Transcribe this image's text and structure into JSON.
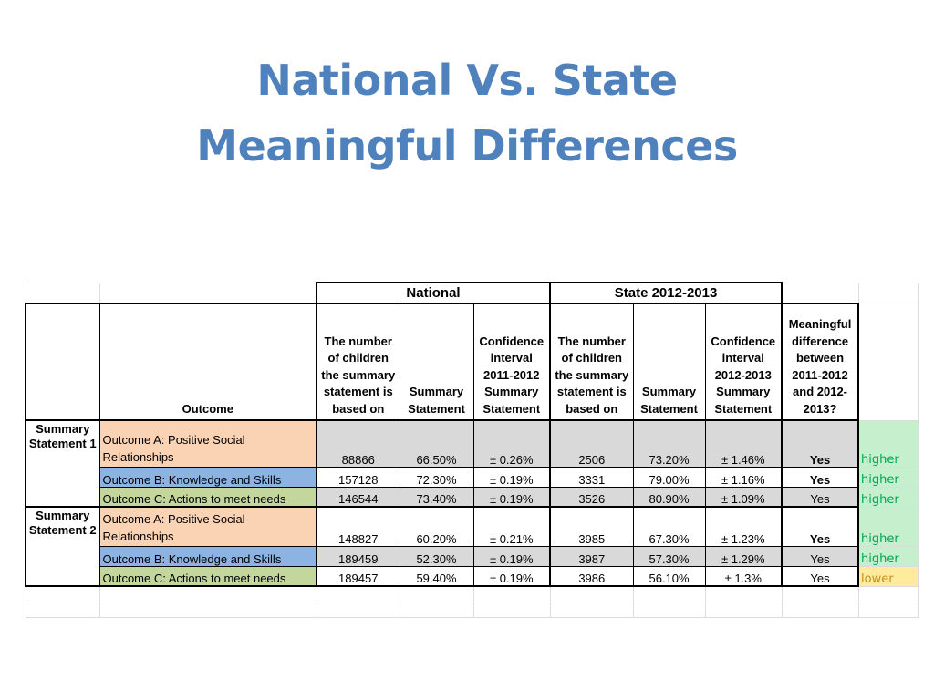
{
  "title": {
    "line1": "National Vs. State",
    "line2": "Meaningful Differences"
  },
  "table": {
    "group_headers": {
      "national": "National",
      "state": "State 2012-2013"
    },
    "column_headers": {
      "outcome": "Outcome",
      "nat_count": "The number of children the summary statement is based on",
      "nat_summary": "Summary Statement",
      "nat_ci": "Confidence interval 2011-2012 Summary Statement",
      "st_count": "The number of children the summary statement is based on",
      "st_summary": "Summary Statement",
      "st_ci": "Confidence interval 2012-2013 Summary Statement",
      "meaningful": "Meaningful difference between 2011-2012 and 2012-2013?"
    },
    "groups": [
      {
        "label": "Summary Statement 1",
        "rows": [
          {
            "outcome": "Outcome A: Positive Social Relationships",
            "nat_count": "88866",
            "nat_summary": "66.50%",
            "nat_ci": "± 0.26%",
            "st_count": "2506",
            "st_summary": "73.20%",
            "st_ci": "± 1.46%",
            "meaningful": "Yes",
            "result": "higher"
          },
          {
            "outcome": "Outcome B: Knowledge and Skills",
            "nat_count": "157128",
            "nat_summary": "72.30%",
            "nat_ci": "± 0.19%",
            "st_count": "3331",
            "st_summary": "79.00%",
            "st_ci": "± 1.16%",
            "meaningful": "Yes",
            "result": "higher"
          },
          {
            "outcome": "Outcome C: Actions to meet needs",
            "nat_count": "146544",
            "nat_summary": "73.40%",
            "nat_ci": "± 0.19%",
            "st_count": "3526",
            "st_summary": "80.90%",
            "st_ci": "± 1.09%",
            "meaningful": "Yes",
            "result": "higher"
          }
        ]
      },
      {
        "label": "Summary Statement 2",
        "rows": [
          {
            "outcome": "Outcome A: Positive Social Relationships",
            "nat_count": "148827",
            "nat_summary": "60.20%",
            "nat_ci": "± 0.21%",
            "st_count": "3985",
            "st_summary": "67.30%",
            "st_ci": "± 1.23%",
            "meaningful": "Yes",
            "result": "higher"
          },
          {
            "outcome": "Outcome B: Knowledge and Skills",
            "nat_count": "189459",
            "nat_summary": "52.30%",
            "nat_ci": "± 0.19%",
            "st_count": "3987",
            "st_summary": "57.30%",
            "st_ci": "± 1.29%",
            "meaningful": "Yes",
            "result": "higher"
          },
          {
            "outcome": "Outcome C: Actions to meet needs",
            "nat_count": "189457",
            "nat_summary": "59.40%",
            "nat_ci": "± 0.19%",
            "st_count": "3986",
            "st_summary": "56.10%",
            "st_ci": "± 1.3%",
            "meaningful": "Yes",
            "result": "lower"
          }
        ]
      }
    ],
    "colors": {
      "title": "#4f81bd",
      "outcome_a": "#fad3b5",
      "outcome_b": "#8db3e2",
      "outcome_c": "#c3d69b",
      "higher_text": "#00a651",
      "higher_fill": "#c6efce",
      "lower_fill": "#ffeb9c"
    }
  }
}
